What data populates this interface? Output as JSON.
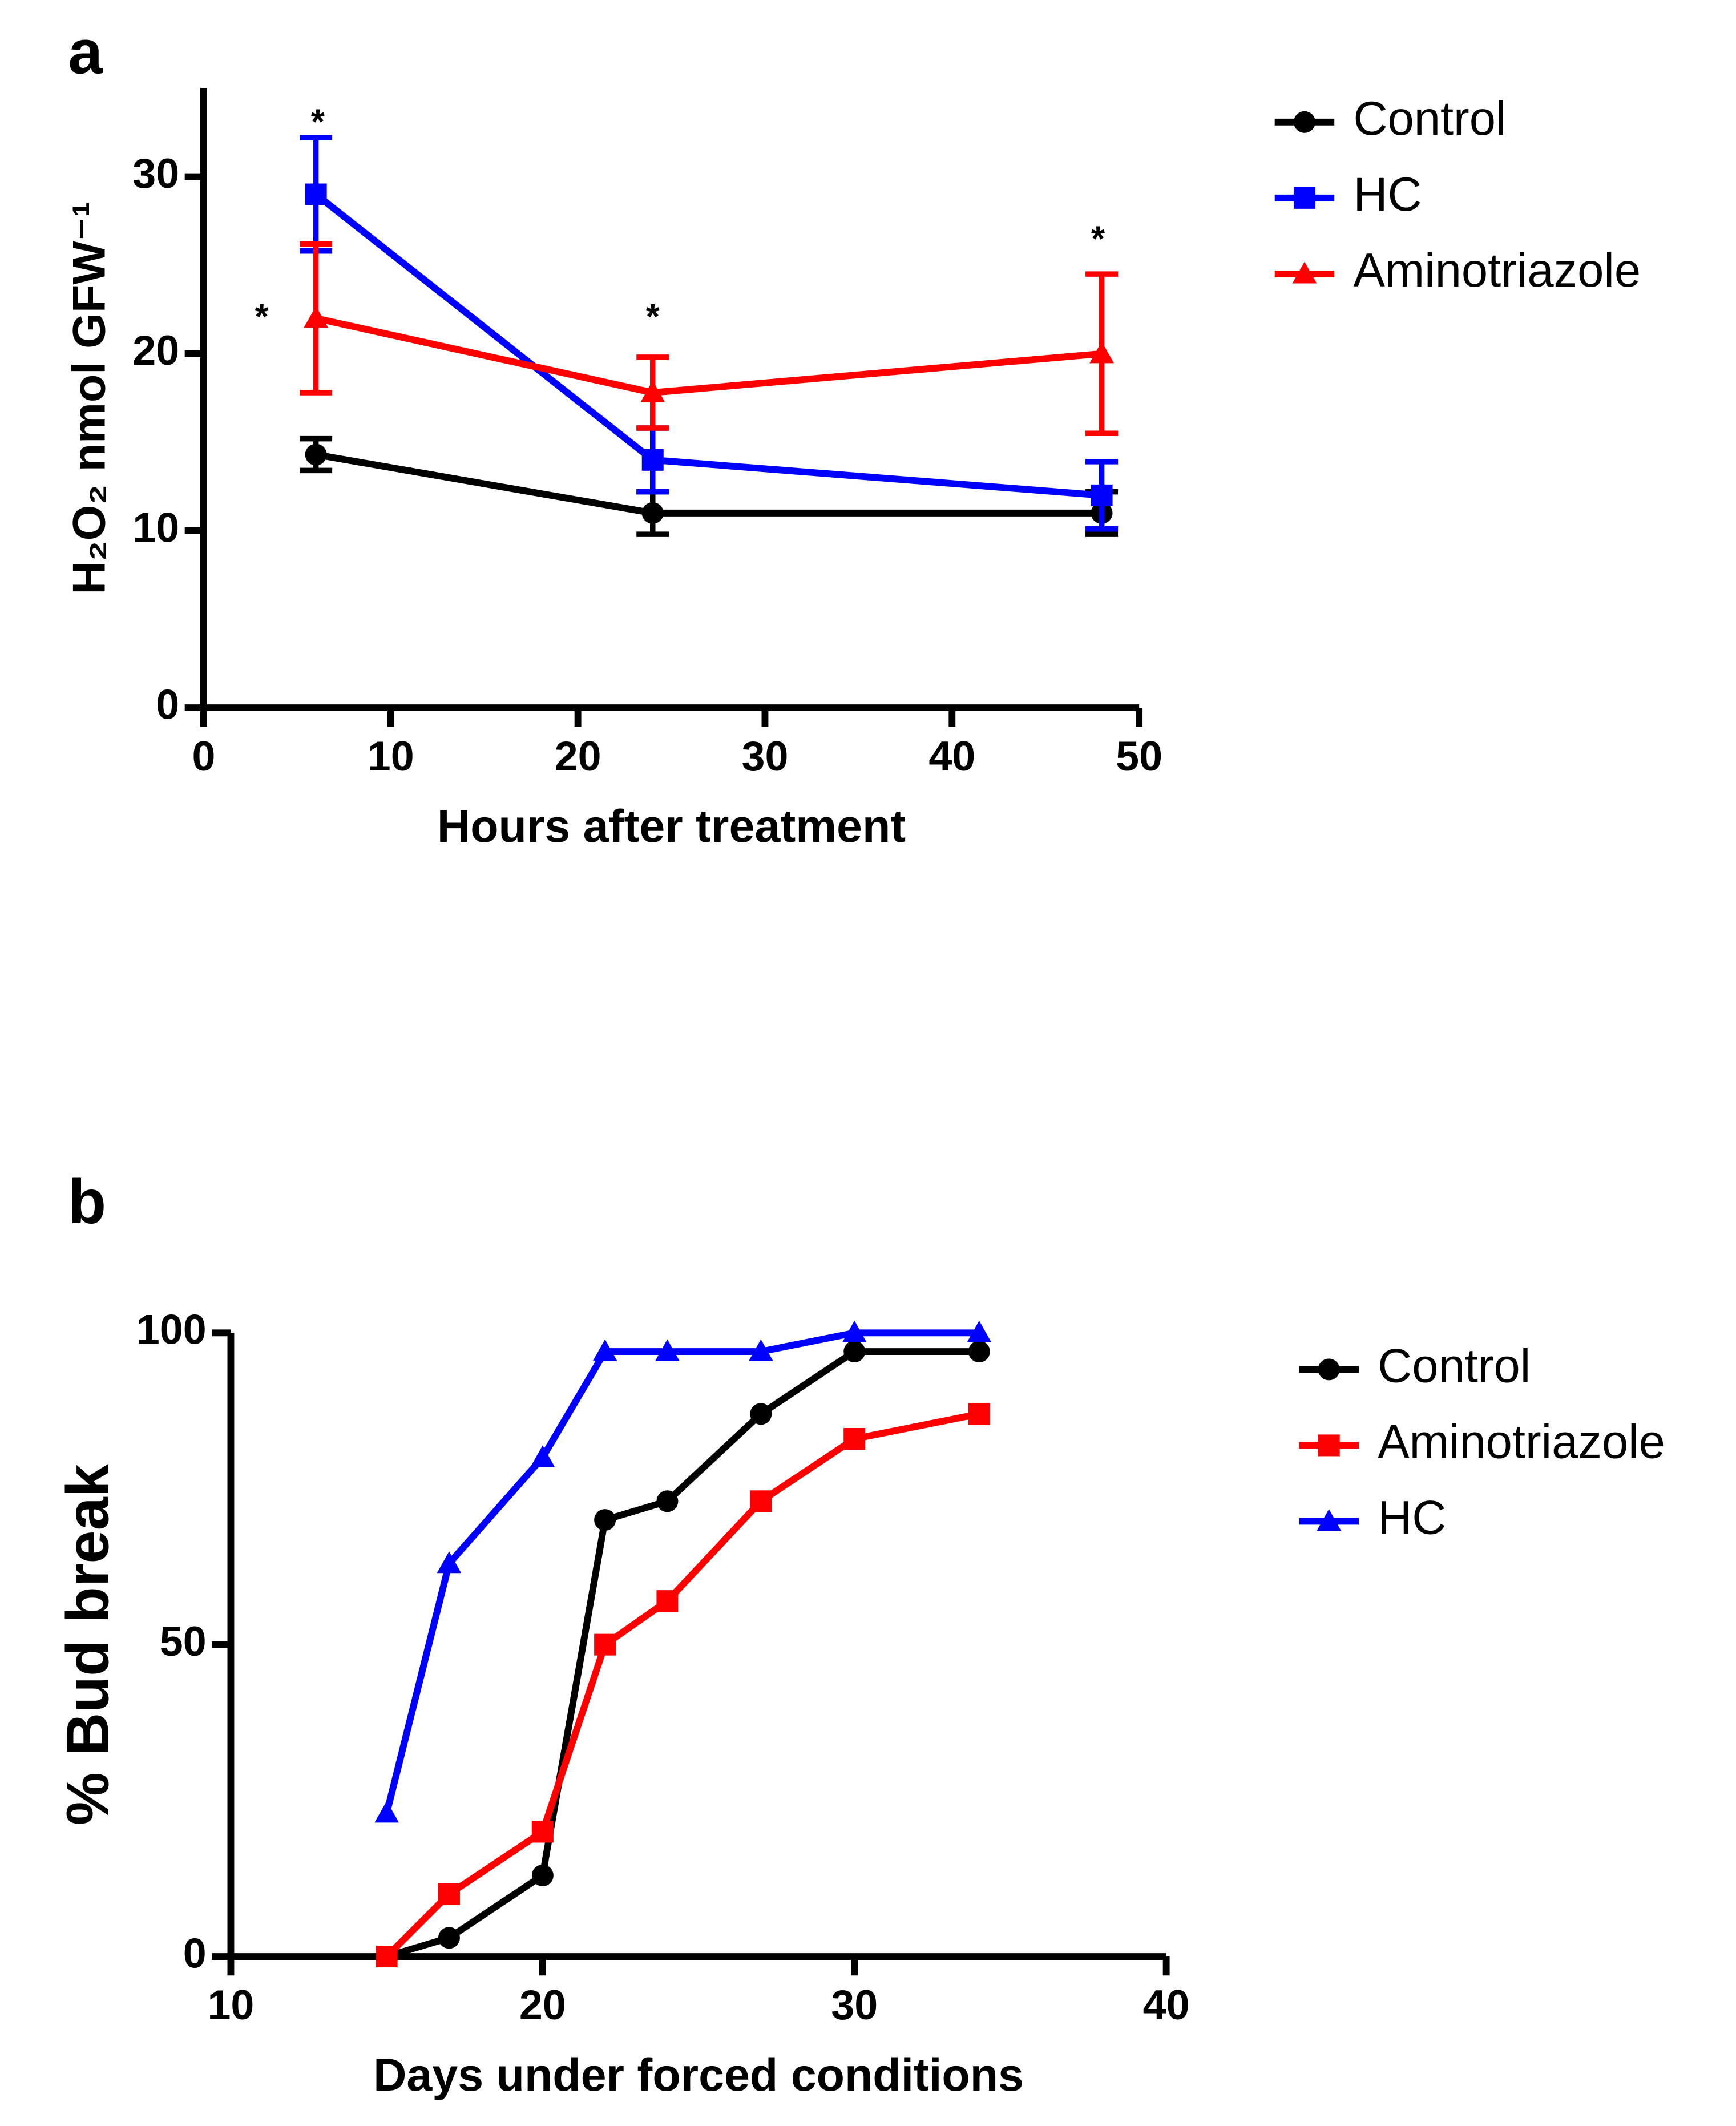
{
  "chart_data": [
    {
      "type": "line",
      "panel": "a",
      "xlabel": "Hours after treatment",
      "ylabel": "H₂O₂ nmol GFW⁻¹",
      "xlim": [
        0,
        50
      ],
      "ylim": [
        0,
        35
      ],
      "xticks": [
        0,
        10,
        20,
        30,
        40,
        50
      ],
      "yticks": [
        0,
        10,
        20,
        30
      ],
      "legend": "right",
      "series": [
        {
          "name": "Control",
          "color": "#000000",
          "marker": "circle",
          "x": [
            6,
            24,
            48
          ],
          "values": [
            14.3,
            11,
            11
          ],
          "errors": [
            0.9,
            1.2,
            1.2
          ]
        },
        {
          "name": "HC",
          "color": "#0000ff",
          "marker": "square",
          "x": [
            6,
            24,
            48
          ],
          "values": [
            29,
            14,
            12
          ],
          "errors": [
            3.2,
            1.8,
            1.9
          ]
        },
        {
          "name": "Aminotriazole",
          "color": "#ff0000",
          "marker": "triangle",
          "x": [
            6,
            24,
            48
          ],
          "values": [
            22,
            17.8,
            20
          ],
          "errors": [
            4.2,
            2.0,
            4.5
          ]
        }
      ],
      "annotations": [
        {
          "text": "*",
          "x": 3.1,
          "y": 22.4
        },
        {
          "text": "*",
          "x": 6.1,
          "y": 33.4
        },
        {
          "text": "*",
          "x": 24,
          "y": 22.4
        },
        {
          "text": "*",
          "x": 47.8,
          "y": 26.8
        }
      ]
    },
    {
      "type": "line",
      "panel": "b",
      "xlabel": "Days under forced conditions",
      "ylabel": "% Bud break",
      "xlim": [
        10,
        40
      ],
      "ylim": [
        0,
        100
      ],
      "xticks": [
        10,
        20,
        30,
        40
      ],
      "yticks": [
        0,
        50,
        100
      ],
      "legend": "right",
      "series": [
        {
          "name": "Control",
          "color": "#000000",
          "marker": "circle",
          "x": [
            15,
            17,
            20,
            22,
            24,
            27,
            30,
            34
          ],
          "values": [
            0,
            3,
            13,
            70,
            73,
            87,
            97,
            97
          ]
        },
        {
          "name": "Aminotriazole",
          "color": "#ff0000",
          "marker": "square",
          "x": [
            15,
            17,
            20,
            22,
            24,
            27,
            30,
            34
          ],
          "values": [
            0,
            10,
            20,
            50,
            57,
            73,
            83,
            87
          ]
        },
        {
          "name": "HC",
          "color": "#0000ff",
          "marker": "triangle",
          "x": [
            15,
            17,
            20,
            22,
            24,
            27,
            30,
            34
          ],
          "values": [
            23,
            63,
            80,
            97,
            97,
            97,
            100,
            100
          ]
        }
      ]
    }
  ]
}
